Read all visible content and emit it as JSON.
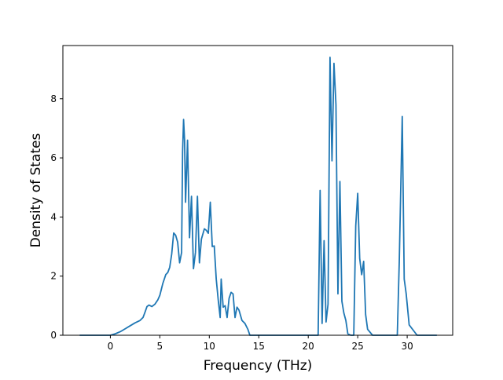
{
  "chart_data": {
    "type": "line",
    "title": "",
    "xlabel": "Frequency (THz)",
    "ylabel": "Density of States",
    "xlim": [
      -4.8,
      34.6
    ],
    "ylim": [
      0,
      9.8
    ],
    "xticks": [
      0,
      5,
      10,
      15,
      20,
      25,
      30
    ],
    "yticks": [
      0,
      2,
      4,
      6,
      8
    ],
    "grid": false,
    "legend": "none",
    "colors": {
      "line": "#1f77b4"
    },
    "series": [
      {
        "x": [
          -3.1,
          0.0,
          0.5,
          1.0,
          1.5,
          2.0,
          2.5,
          3.0,
          3.3,
          3.5,
          3.7,
          3.9,
          4.2,
          4.5,
          4.8,
          5.0,
          5.3,
          5.6,
          5.8,
          6.0,
          6.2,
          6.4,
          6.6,
          6.8,
          7.0,
          7.2,
          7.3,
          7.4,
          7.5,
          7.6,
          7.8,
          8.0,
          8.2,
          8.4,
          8.6,
          8.8,
          9.0,
          9.2,
          9.5,
          9.7,
          9.9,
          10.1,
          10.3,
          10.5,
          10.7,
          10.9,
          11.1,
          11.2,
          11.4,
          11.6,
          11.8,
          12.0,
          12.2,
          12.4,
          12.6,
          12.8,
          13.0,
          13.3,
          13.6,
          13.9,
          14.1,
          14.3,
          14.5,
          16.0,
          18.0,
          21.0,
          21.2,
          21.4,
          21.6,
          21.8,
          22.0,
          22.2,
          22.4,
          22.6,
          22.8,
          23.0,
          23.2,
          23.4,
          23.6,
          23.8,
          24.0,
          24.3,
          24.6,
          24.8,
          25.0,
          25.2,
          25.4,
          25.6,
          25.8,
          26.0,
          26.5,
          27.0,
          28.0,
          28.8,
          29.0,
          29.2,
          29.5,
          29.7,
          29.9,
          30.2,
          31.0,
          33.0
        ],
        "y": [
          0,
          0.0,
          0.05,
          0.12,
          0.22,
          0.32,
          0.42,
          0.5,
          0.6,
          0.78,
          0.97,
          1.02,
          0.97,
          1.05,
          1.2,
          1.35,
          1.75,
          2.05,
          2.12,
          2.3,
          2.75,
          3.46,
          3.38,
          3.15,
          2.45,
          2.8,
          6.2,
          7.3,
          6.6,
          4.5,
          6.6,
          3.3,
          4.7,
          2.25,
          2.8,
          4.7,
          2.45,
          3.25,
          3.6,
          3.55,
          3.45,
          4.5,
          3.0,
          3.02,
          1.9,
          1.2,
          0.6,
          1.9,
          0.95,
          1.0,
          0.6,
          1.25,
          1.45,
          1.4,
          0.6,
          0.95,
          0.85,
          0.5,
          0.4,
          0.2,
          0.0,
          0.0,
          0.0,
          0.0,
          0.0,
          0.0,
          4.9,
          0.4,
          3.2,
          0.45,
          1.05,
          9.4,
          5.9,
          9.2,
          7.8,
          1.4,
          5.2,
          1.15,
          0.75,
          0.5,
          0.05,
          0.0,
          0.0,
          3.7,
          4.8,
          2.6,
          2.05,
          2.5,
          0.7,
          0.2,
          0.0,
          0.0,
          0.0,
          0.0,
          0.0,
          2.5,
          7.4,
          1.9,
          1.4,
          0.35,
          0.0,
          0.0
        ]
      }
    ]
  }
}
